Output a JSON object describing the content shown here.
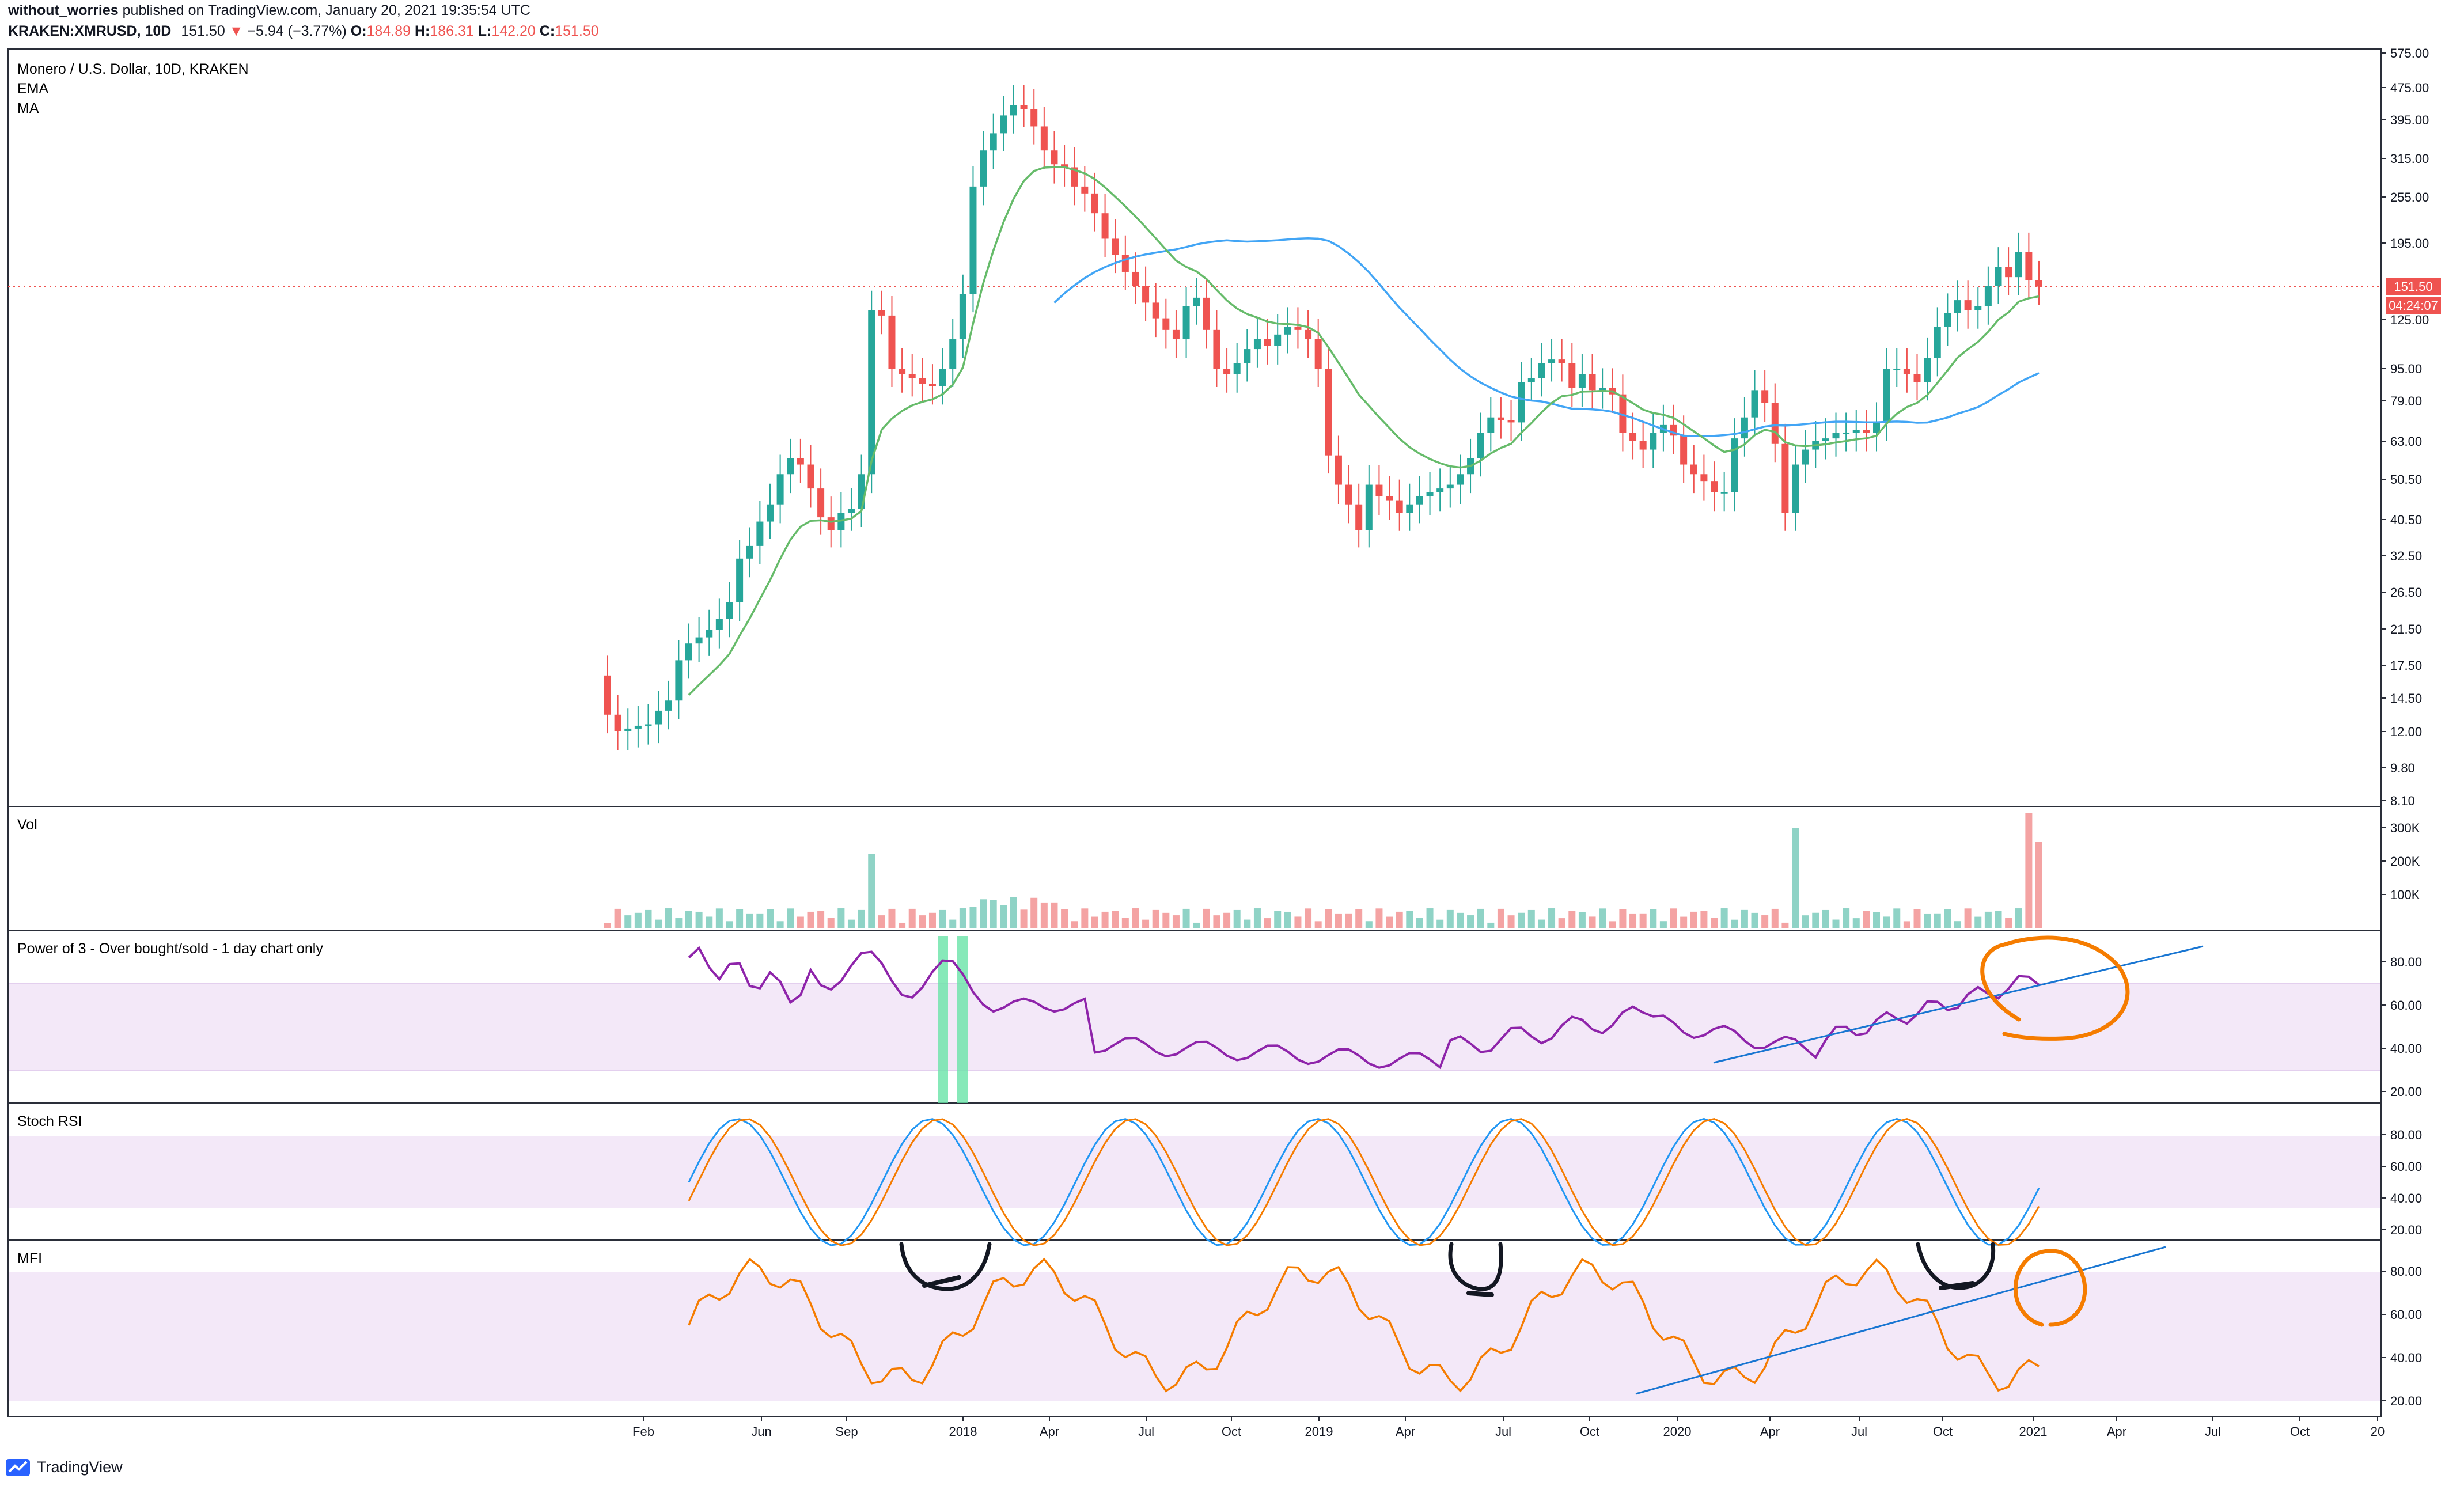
{
  "header": {
    "author": "without_worries",
    "published_text": "published on TradingView.com, January 20, 2021 19:35:54 UTC",
    "symbol_line": "KRAKEN:XMRUSD, 10D",
    "price": "151.50",
    "change": "−5.94 (−3.77%)",
    "o_label": "O:",
    "o_value": "184.89",
    "h_label": "H:",
    "h_value": "186.31",
    "l_label": "L:",
    "l_value": "142.20",
    "c_label": "C:",
    "c_value": "151.50"
  },
  "panes": {
    "main": {
      "title": "Monero / U.S. Dollar, 10D, KRAKEN",
      "ema_label": "EMA",
      "ma_label": "MA"
    },
    "vol": {
      "title": "Vol"
    },
    "power3": {
      "title": "Power of 3 - Over bought/sold - 1 day chart only"
    },
    "stochrsi": {
      "title": "Stoch RSI"
    },
    "mfi": {
      "title": "MFI"
    }
  },
  "price_axis": {
    "ticks": [
      "575.00",
      "475.00",
      "395.00",
      "315.00",
      "255.00",
      "195.00",
      "125.00",
      "95.00",
      "79.00",
      "63.00",
      "50.50",
      "40.50",
      "32.50",
      "26.50",
      "21.50",
      "17.50",
      "14.50",
      "12.00",
      "9.80",
      "8.10"
    ],
    "current_price_label": "151.50",
    "countdown_label": "04:24:07"
  },
  "vol_axis": {
    "ticks": [
      "300K",
      "200K",
      "100K"
    ]
  },
  "osc_axis": {
    "ticks": [
      "80.00",
      "60.00",
      "40.00",
      "20.00"
    ]
  },
  "time_axis": {
    "ticks": [
      "Feb",
      "Jun",
      "Sep",
      "2018",
      "Apr",
      "Jul",
      "Oct",
      "2019",
      "Apr",
      "Jul",
      "Oct",
      "2020",
      "Apr",
      "Jul",
      "Oct",
      "2021",
      "Apr",
      "Jul",
      "Oct",
      "20"
    ]
  },
  "colors": {
    "up": "#26a69a",
    "up_light": "#8fd3c6",
    "down": "#ef5350",
    "down_light": "#f4a3a3",
    "ema": "#66bb6a",
    "ma": "#42a5f5",
    "band": "#f3e8f8",
    "power3": "#8e24aa",
    "stoch_k": "#2196f3",
    "stoch_d": "#f57c00",
    "mfi": "#f57c00",
    "trend": "#1976d2",
    "annot_orange": "#f57c00",
    "annot_black": "#131722",
    "highlight": "#69e3a8"
  },
  "footer": {
    "brand": "TradingView"
  }
}
